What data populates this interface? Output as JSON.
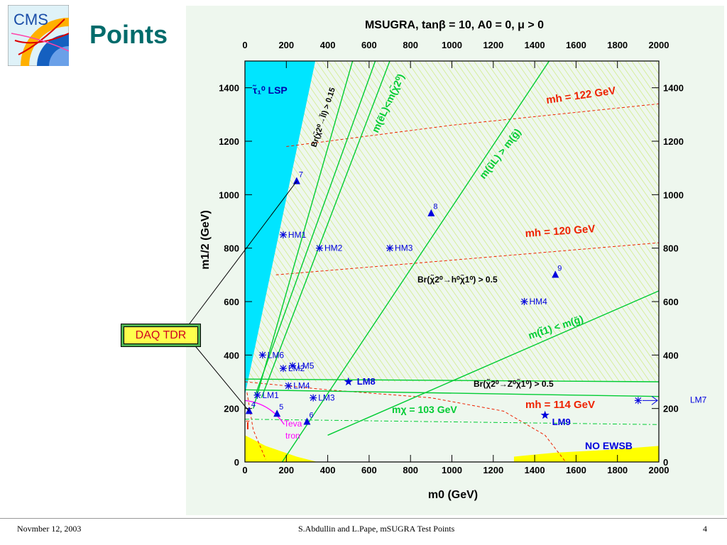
{
  "slide": {
    "title": "Points",
    "logo_text": "CMS"
  },
  "daq_label": "DAQ TDR",
  "footer": {
    "date": "Novmber 12, 2003",
    "author": "S.Abdullin and L.Pape,   mSUGRA Test Points",
    "page": "4"
  },
  "colors": {
    "lsp": "#00e5ff",
    "ewsb": "#ffff00",
    "hatch": "#c8e86a",
    "green": "#00cc33",
    "red": "#ee2200",
    "blue": "#0000dd",
    "magenta": "#ff00ff",
    "title_teal": "#006b6b"
  },
  "chart_data": {
    "type": "scatter",
    "title": "MSUGRA, tanβ = 10, A0 = 0, μ > 0",
    "xlabel": "m0 (GeV)",
    "ylabel": "m1/2 (GeV)",
    "xlim": [
      0,
      2000
    ],
    "ylim": [
      0,
      1500
    ],
    "x_ticks": [
      0,
      200,
      400,
      600,
      800,
      1000,
      1200,
      1400,
      1600,
      1800,
      2000
    ],
    "y_ticks": [
      0,
      200,
      400,
      600,
      800,
      1000,
      1200,
      1400
    ],
    "grid": false,
    "series": [
      {
        "name": "triangles",
        "marker": "triangle",
        "color": "#0000dd",
        "points": [
          {
            "label": "4",
            "x": 20,
            "y": 190
          },
          {
            "label": "5",
            "x": 155,
            "y": 180
          },
          {
            "label": "6",
            "x": 300,
            "y": 150
          },
          {
            "label": "7",
            "x": 250,
            "y": 1050
          },
          {
            "label": "8",
            "x": 900,
            "y": 930
          },
          {
            "label": "9",
            "x": 1500,
            "y": 700
          }
        ]
      },
      {
        "name": "asterisks",
        "marker": "asterisk",
        "color": "#0000dd",
        "points": [
          {
            "label": "HM1",
            "x": 185,
            "y": 850
          },
          {
            "label": "HM2",
            "x": 360,
            "y": 800
          },
          {
            "label": "HM3",
            "x": 700,
            "y": 800
          },
          {
            "label": "HM4",
            "x": 1350,
            "y": 600
          },
          {
            "label": "LM1",
            "x": 60,
            "y": 250
          },
          {
            "label": "LM2",
            "x": 185,
            "y": 350
          },
          {
            "label": "LM3",
            "x": 330,
            "y": 240
          },
          {
            "label": "LM4",
            "x": 210,
            "y": 285
          },
          {
            "label": "LM5",
            "x": 230,
            "y": 360
          },
          {
            "label": "LM6",
            "x": 85,
            "y": 400
          },
          {
            "label": "LM7",
            "x": 1900,
            "y": 230
          }
        ]
      },
      {
        "name": "stars",
        "marker": "star",
        "color": "#0000dd",
        "points": [
          {
            "label": "LM8",
            "x": 500,
            "y": 300
          },
          {
            "label": "LM9",
            "x": 1450,
            "y": 175
          }
        ]
      }
    ],
    "regions": [
      {
        "label": "τ̃1⁰ LSP",
        "color": "#00e5ff",
        "poly": [
          [
            0,
            1500
          ],
          [
            340,
            1500
          ],
          [
            0,
            250
          ]
        ]
      },
      {
        "label": "NO EWSB",
        "color": "#ffff00",
        "poly": [
          [
            1300,
            20
          ],
          [
            1500,
            35
          ],
          [
            1750,
            45
          ],
          [
            2000,
            60
          ],
          [
            2000,
            0
          ],
          [
            1300,
            0
          ]
        ]
      },
      {
        "label": "",
        "color": "#ffff00",
        "poly": [
          [
            0,
            100
          ],
          [
            0,
            0
          ],
          [
            350,
            0
          ],
          [
            250,
            20
          ],
          [
            100,
            60
          ]
        ]
      }
    ],
    "curves": [
      {
        "label": "mh = 122 GeV",
        "color": "#ee2200",
        "dash": true,
        "points": [
          [
            200,
            1180
          ],
          [
            1000,
            1260
          ],
          [
            2000,
            1340
          ]
        ]
      },
      {
        "label": "mh = 120 GeV",
        "color": "#ee2200",
        "dash": true,
        "points": [
          [
            150,
            700
          ],
          [
            1000,
            755
          ],
          [
            2000,
            820
          ]
        ]
      },
      {
        "label": "mh = 114 GeV",
        "color": "#ee2200",
        "dash": true,
        "points": [
          [
            0,
            300
          ],
          [
            400,
            270
          ],
          [
            900,
            240
          ],
          [
            1250,
            190
          ],
          [
            1450,
            100
          ],
          [
            1550,
            0
          ]
        ]
      },
      {
        "label": "",
        "color": "#ee2200",
        "dash": true,
        "points": [
          [
            10,
            260
          ],
          [
            40,
            120
          ],
          [
            100,
            10
          ]
        ]
      },
      {
        "label": "m(ẽL)<m(χ̃2⁰)",
        "color": "#00cc33",
        "dash": false,
        "points": [
          [
            80,
            240
          ],
          [
            700,
            1500
          ]
        ]
      },
      {
        "label": "Br(χ̃2⁰→l̃l) > 0.15",
        "color": "#00cc33",
        "dash": false,
        "points": [
          [
            50,
            250
          ],
          [
            630,
            1500
          ]
        ]
      },
      {
        "label": "m(ũL) > m(g̃)",
        "color": "#00cc33",
        "dash": false,
        "points": [
          [
            180,
            0
          ],
          [
            1470,
            1500
          ]
        ]
      },
      {
        "label": "Br(χ̃2⁰→h⁰χ̃1⁰) > 0.5",
        "color": "#00cc33",
        "dash": false,
        "points": [
          [
            40,
            200
          ],
          [
            520,
            1500
          ]
        ]
      },
      {
        "label": "m(t̃1) < m(g̃)",
        "color": "#00cc33",
        "dash": false,
        "points": [
          [
            400,
            100
          ],
          [
            2000,
            640
          ]
        ]
      },
      {
        "label": "Br(χ̃2⁰→Z⁰χ̃1⁰) > 0.5",
        "color": "#00cc33",
        "dash": false,
        "points": [
          [
            0,
            310
          ],
          [
            2000,
            300
          ]
        ]
      },
      {
        "label": "",
        "color": "#00cc33",
        "dash": false,
        "points": [
          [
            0,
            270
          ],
          [
            2000,
            245
          ]
        ]
      },
      {
        "label": "mχ = 103 GeV",
        "color": "#00cc33",
        "dash": true,
        "points": [
          [
            0,
            160
          ],
          [
            2000,
            140
          ]
        ]
      }
    ],
    "annotations": [
      "LSP",
      "Teva tron",
      "l̃",
      "NO EWSB"
    ]
  }
}
